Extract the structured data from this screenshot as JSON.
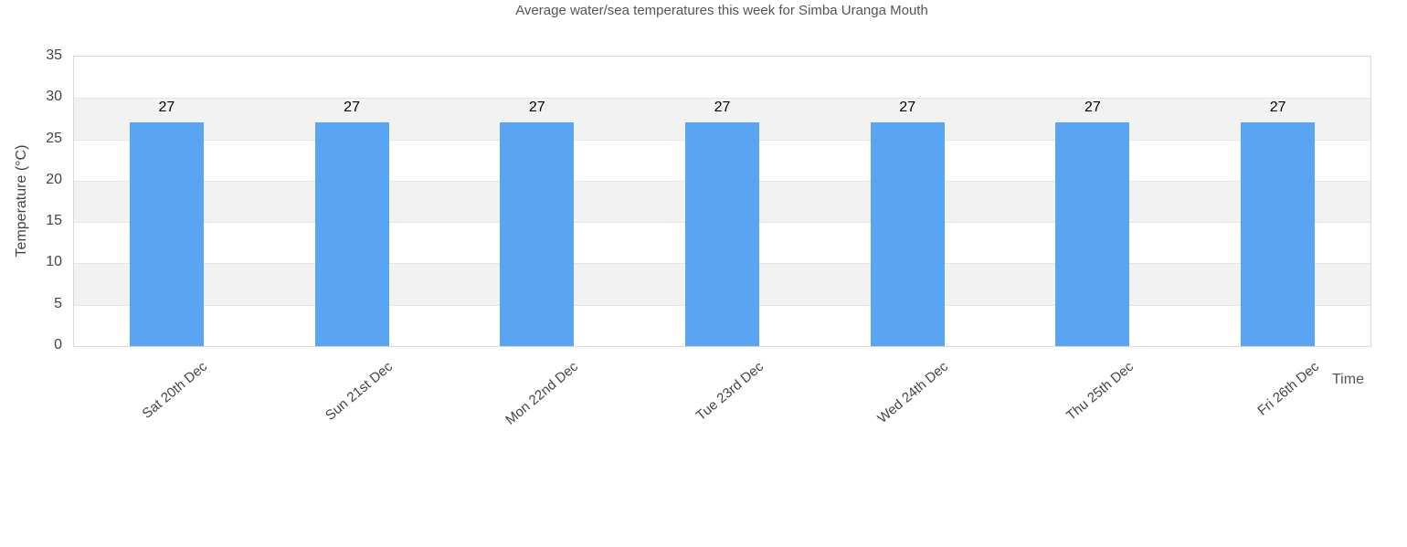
{
  "chart_data": {
    "type": "bar",
    "title": "Average water/sea temperatures this week for Simba Uranga Mouth",
    "categories": [
      "Sat 20th Dec",
      "Sun 21st Dec",
      "Mon 22nd Dec",
      "Tue 23rd Dec",
      "Wed 24th Dec",
      "Thu 25th Dec",
      "Fri 26th Dec"
    ],
    "values": [
      27,
      27,
      27,
      27,
      27,
      27,
      27
    ],
    "value_labels": [
      "27",
      "27",
      "27",
      "27",
      "27",
      "27",
      "27"
    ],
    "xlabel": "Time",
    "ylabel": "Temperature (°C)",
    "ylim": [
      0,
      35
    ],
    "yticks": [
      0,
      5,
      10,
      15,
      20,
      25,
      30,
      35
    ],
    "grid": true,
    "legend": "none",
    "plot_bands_alternating": true
  },
  "colors": {
    "bar": "#5aa5f2",
    "band": "#f2f2f2",
    "gridline": "#e6e6e6",
    "plot_border": "#d8d8d8",
    "title_text": "#555555",
    "tick_text": "#444444",
    "value_text": "#000000"
  }
}
